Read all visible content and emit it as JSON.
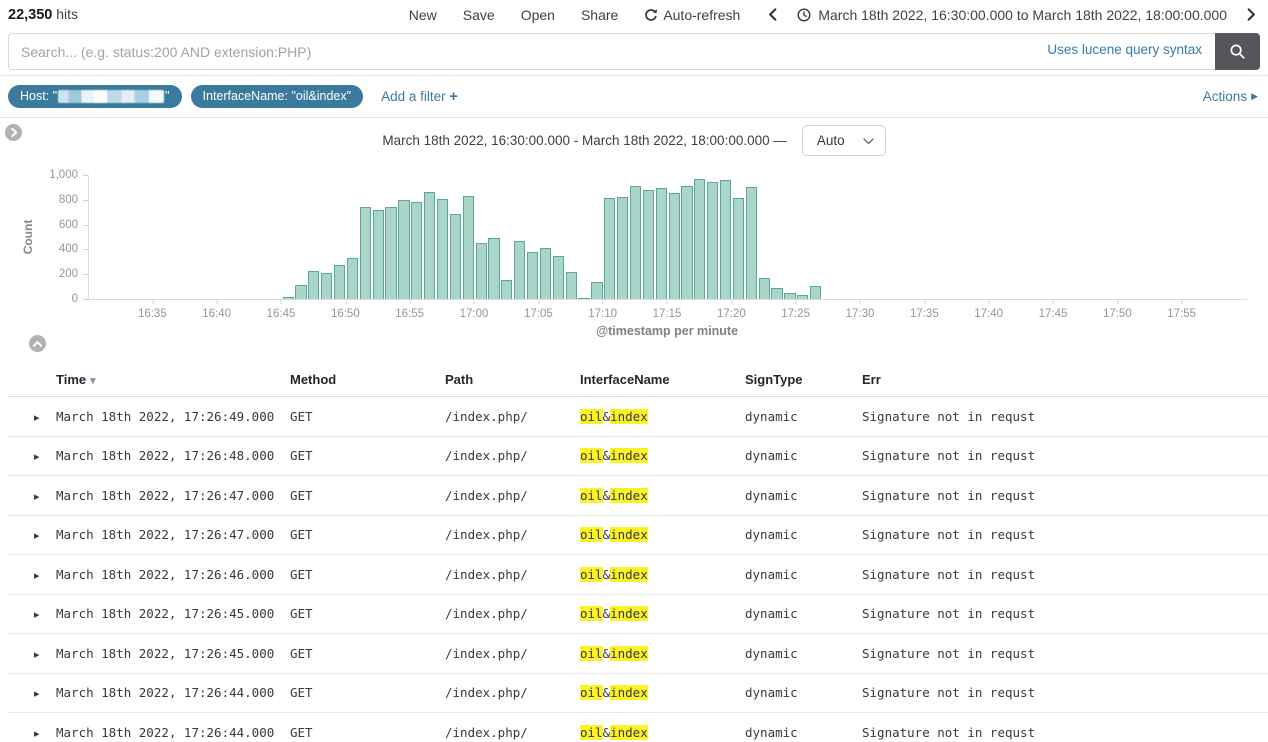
{
  "header": {
    "hits_count": "22,350",
    "hits_label": "hits",
    "nav_items": [
      "New",
      "Save",
      "Open",
      "Share"
    ],
    "auto_refresh_label": "Auto-refresh",
    "time_range": "March 18th 2022, 16:30:00.000 to March 18th 2022, 18:00:00.000"
  },
  "search": {
    "value": "",
    "placeholder": "Search... (e.g. status:200 AND extension:PHP)",
    "syntax_hint": "Uses lucene query syntax"
  },
  "filters": {
    "host_pill_prefix": "Host: \"",
    "host_pill_suffix": "\"",
    "host_value_redacted": true,
    "interface_pill": "InterfaceName: \"oil&index\"",
    "add_filter_label": "Add a filter",
    "add_filter_plus": "+",
    "actions_label": "Actions"
  },
  "chart": {
    "title": "March 18th 2022, 16:30:00.000 - March 18th 2022, 18:00:00.000 —",
    "interval_selected": "Auto"
  },
  "chart_data": {
    "type": "bar",
    "title": "March 18th 2022, 16:30:00.000 - March 18th 2022, 18:00:00.000",
    "ylabel": "Count",
    "xlabel": "@timestamp per minute",
    "ylim": [
      0,
      1000
    ],
    "grid": false,
    "y_ticks": [
      "0",
      "200",
      "400",
      "600",
      "800",
      "1,000"
    ],
    "x_ticks": [
      "16:35",
      "16:40",
      "16:45",
      "16:50",
      "16:55",
      "17:00",
      "17:05",
      "17:10",
      "17:15",
      "17:20",
      "17:25",
      "17:30",
      "17:35",
      "17:40",
      "17:45",
      "17:50",
      "17:55"
    ],
    "x_range": [
      "16:30",
      "18:00"
    ],
    "x": [
      "16:45",
      "16:46",
      "16:47",
      "16:48",
      "16:49",
      "16:50",
      "16:51",
      "16:52",
      "16:53",
      "16:54",
      "16:55",
      "16:56",
      "16:57",
      "16:58",
      "16:59",
      "17:00",
      "17:01",
      "17:02",
      "17:03",
      "17:04",
      "17:05",
      "17:06",
      "17:07",
      "17:08",
      "17:09",
      "17:10",
      "17:11",
      "17:12",
      "17:13",
      "17:14",
      "17:15",
      "17:16",
      "17:17",
      "17:18",
      "17:19",
      "17:20",
      "17:21",
      "17:22",
      "17:23",
      "17:24",
      "17:25",
      "17:26"
    ],
    "values": [
      20,
      115,
      225,
      210,
      275,
      330,
      745,
      715,
      745,
      795,
      780,
      865,
      810,
      685,
      830,
      455,
      490,
      150,
      470,
      375,
      410,
      345,
      215,
      10,
      135,
      815,
      825,
      910,
      875,
      895,
      855,
      915,
      965,
      945,
      960,
      815,
      900,
      170,
      85,
      45,
      30,
      105
    ],
    "bar_fill": "#a9d6c9",
    "bar_border": "#58a89b"
  },
  "table": {
    "columns": [
      "Time",
      "Method",
      "Path",
      "InterfaceName",
      "SignType",
      "Err"
    ],
    "sort_column": "Time",
    "highlight_terms": [
      "oil",
      "index"
    ],
    "interface_parts": [
      [
        "oil",
        true
      ],
      [
        "&",
        false
      ],
      [
        "index",
        true
      ]
    ],
    "rows": [
      {
        "time": "March 18th 2022, 17:26:49.000",
        "method": "GET",
        "path": "/index.php/",
        "interface_name": "oil&index",
        "sign_type": "dynamic",
        "err": "Signature not in requst"
      },
      {
        "time": "March 18th 2022, 17:26:48.000",
        "method": "GET",
        "path": "/index.php/",
        "interface_name": "oil&index",
        "sign_type": "dynamic",
        "err": "Signature not in requst"
      },
      {
        "time": "March 18th 2022, 17:26:47.000",
        "method": "GET",
        "path": "/index.php/",
        "interface_name": "oil&index",
        "sign_type": "dynamic",
        "err": "Signature not in requst"
      },
      {
        "time": "March 18th 2022, 17:26:47.000",
        "method": "GET",
        "path": "/index.php/",
        "interface_name": "oil&index",
        "sign_type": "dynamic",
        "err": "Signature not in requst"
      },
      {
        "time": "March 18th 2022, 17:26:46.000",
        "method": "GET",
        "path": "/index.php/",
        "interface_name": "oil&index",
        "sign_type": "dynamic",
        "err": "Signature not in requst"
      },
      {
        "time": "March 18th 2022, 17:26:45.000",
        "method": "GET",
        "path": "/index.php/",
        "interface_name": "oil&index",
        "sign_type": "dynamic",
        "err": "Signature not in requst"
      },
      {
        "time": "March 18th 2022, 17:26:45.000",
        "method": "GET",
        "path": "/index.php/",
        "interface_name": "oil&index",
        "sign_type": "dynamic",
        "err": "Signature not in requst"
      },
      {
        "time": "March 18th 2022, 17:26:44.000",
        "method": "GET",
        "path": "/index.php/",
        "interface_name": "oil&index",
        "sign_type": "dynamic",
        "err": "Signature not in requst"
      },
      {
        "time": "March 18th 2022, 17:26:44.000",
        "method": "GET",
        "path": "/index.php/",
        "interface_name": "oil&index",
        "sign_type": "dynamic",
        "err": "Signature not in requst"
      }
    ]
  }
}
